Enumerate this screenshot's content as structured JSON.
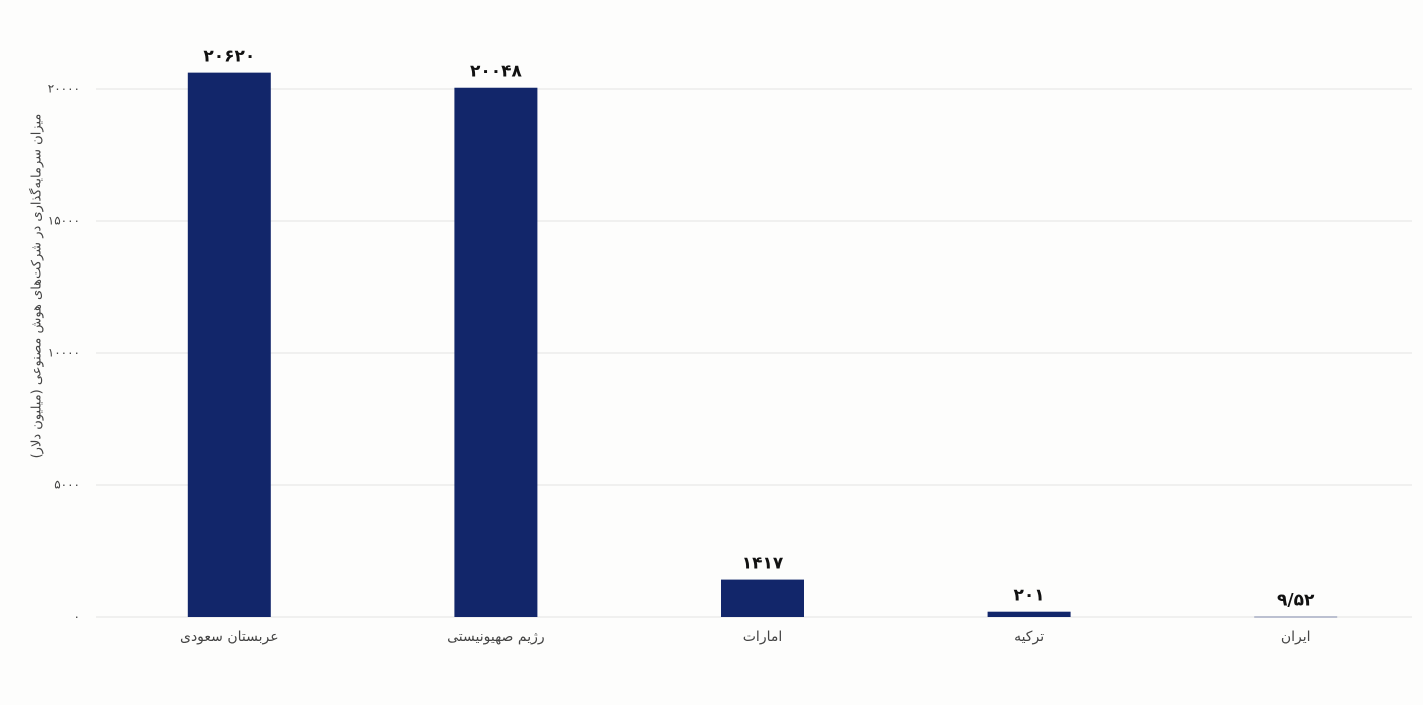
{
  "chart_data": {
    "type": "bar",
    "y_label": "میزان سرمایه‌گذاری در شرکت‌های هوش مصنوعی (میلیون دلار)",
    "categories": [
      "عربستان سعودی",
      "رژیم صهیونیستی",
      "امارات",
      "ترکیه",
      "ایران"
    ],
    "values": [
      20620,
      20048,
      1417,
      201,
      9.52
    ],
    "value_labels": [
      "۲۰۶۲۰",
      "۲۰۰۴۸",
      "۱۴۱۷",
      "۲۰۱",
      "۹/۵۲"
    ],
    "color": "#12266a",
    "ylim": [
      0,
      20000
    ],
    "yticks": [
      {
        "value": 0,
        "label": "۰"
      },
      {
        "value": 5000,
        "label": "۵۰۰۰"
      },
      {
        "value": 10000,
        "label": "۱۰۰۰۰"
      },
      {
        "value": 15000,
        "label": "۱۵۰۰۰"
      },
      {
        "value": 20000,
        "label": "۲۰۰۰۰"
      }
    ],
    "grid": true
  }
}
